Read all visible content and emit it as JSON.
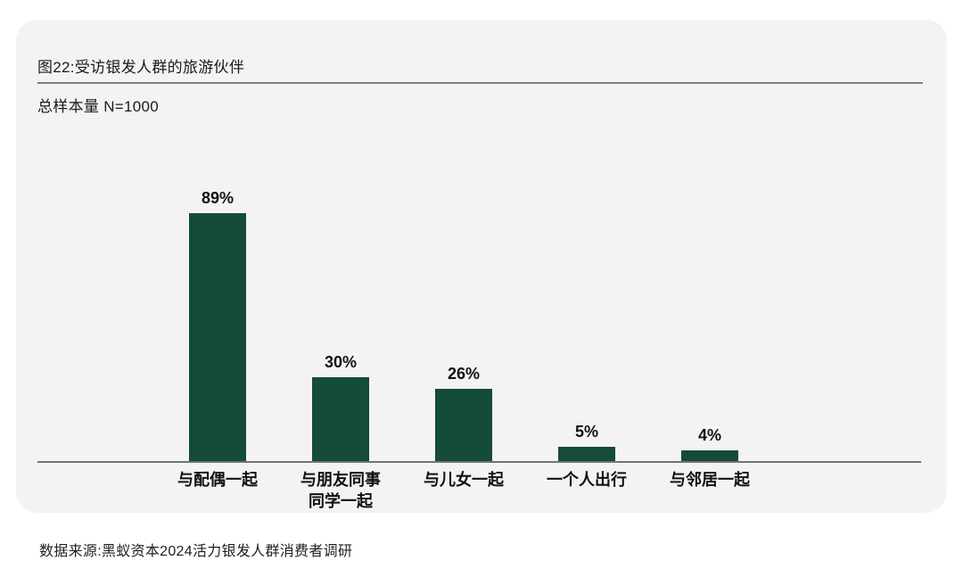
{
  "card": {
    "title": "图22:受访银发人群的旅游伙伴",
    "subtitle": "总样本量 N=1000"
  },
  "chart_data": {
    "type": "bar",
    "title": "图22:受访银发人群的旅游伙伴",
    "sample_note": "总样本量 N=1000",
    "categories": [
      "与配偶一起",
      "与朋友同事\n同学一起",
      "与儿女一起",
      "一个人出行",
      "与邻居一起"
    ],
    "values": [
      89,
      30,
      26,
      5,
      4
    ],
    "value_labels": [
      "89%",
      "30%",
      "26%",
      "5%",
      "4%"
    ],
    "unit": "%",
    "ylim": [
      0,
      100
    ],
    "grid": false,
    "legend": "none",
    "bar_color": "#144c39"
  },
  "footer": {
    "source": "数据来源:黑蚁资本2024活力银发人群消费者调研"
  },
  "colors": {
    "bar": "#144c39",
    "card_bg": "#f3f3f3",
    "page_bg": "#ffffff",
    "divider": "#7f7f7f",
    "axis": "#737373",
    "text": "#1a1a1a"
  }
}
